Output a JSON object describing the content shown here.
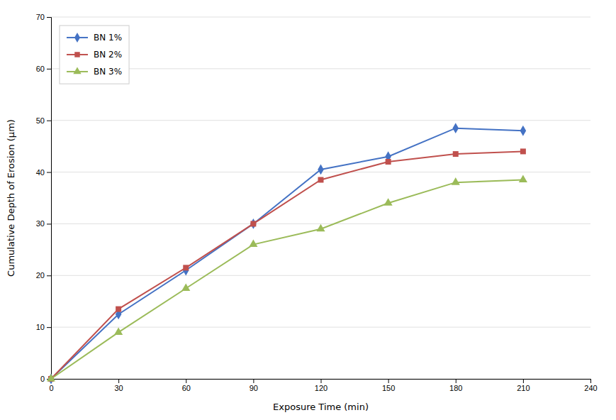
{
  "chart_data": {
    "type": "line",
    "xlabel": "Exposure Time (min)",
    "ylabel": "Cumulative Depth of Erosion (μm)",
    "x": [
      0,
      30,
      60,
      90,
      120,
      150,
      180,
      210
    ],
    "series": [
      {
        "name": "BN 1%",
        "color": "#4472C4",
        "marker": "diamond",
        "values": [
          0,
          12.5,
          21.0,
          30.0,
          40.5,
          43.0,
          48.5,
          48.0
        ]
      },
      {
        "name": "BN 2%",
        "color": "#C0504D",
        "marker": "square",
        "values": [
          0,
          13.5,
          21.5,
          30.0,
          38.5,
          42.0,
          43.5,
          44.0
        ]
      },
      {
        "name": "BN 3%",
        "color": "#9BBB59",
        "marker": "triangle",
        "values": [
          0,
          9.0,
          17.5,
          26.0,
          29.0,
          34.0,
          38.0,
          38.5
        ]
      }
    ],
    "xlim": [
      0,
      240
    ],
    "ylim": [
      0,
      70
    ],
    "xticks": [
      0,
      30,
      60,
      90,
      120,
      150,
      180,
      210,
      240
    ],
    "yticks": [
      0,
      10,
      20,
      30,
      40,
      50,
      60,
      70
    ],
    "grid": true,
    "legend": "upper left"
  }
}
